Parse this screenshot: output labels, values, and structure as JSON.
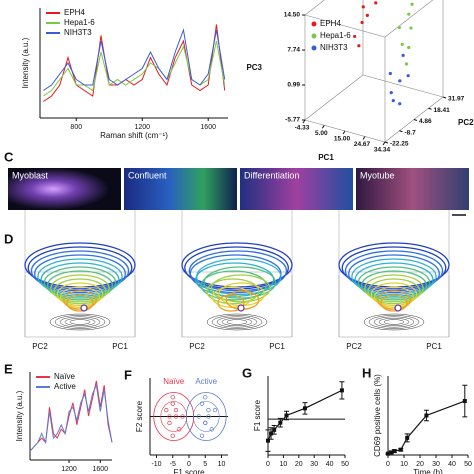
{
  "chart_data": [
    {
      "type": "line",
      "ylabel": "Intensity (a.u.)",
      "xlabel": "Raman shift (cm⁻¹)",
      "legend": "upper left",
      "x": [
        600,
        650,
        700,
        750,
        800,
        850,
        900,
        950,
        1000,
        1050,
        1100,
        1150,
        1200,
        1250,
        1300,
        1350,
        1400,
        1450,
        1500,
        1550,
        1600,
        1650,
        1700
      ],
      "series": [
        {
          "name": "EPH4",
          "color": "#e41a1c",
          "values": [
            0.15,
            0.2,
            0.3,
            0.55,
            0.3,
            0.25,
            0.2,
            0.75,
            0.3,
            0.3,
            0.35,
            0.3,
            0.35,
            0.55,
            0.4,
            0.3,
            0.55,
            0.7,
            0.3,
            0.25,
            0.3,
            0.85,
            0.25
          ]
        },
        {
          "name": "Hepa1-6",
          "color": "#7ac943",
          "values": [
            0.2,
            0.25,
            0.35,
            0.45,
            0.3,
            0.3,
            0.25,
            0.6,
            0.3,
            0.35,
            0.3,
            0.35,
            0.4,
            0.5,
            0.45,
            0.35,
            0.5,
            0.65,
            0.35,
            0.3,
            0.35,
            0.7,
            0.3
          ]
        },
        {
          "name": "NIH3T3",
          "color": "#3b5bdb",
          "values": [
            0.25,
            0.3,
            0.4,
            0.5,
            0.35,
            0.3,
            0.3,
            0.7,
            0.35,
            0.3,
            0.35,
            0.4,
            0.45,
            0.6,
            0.45,
            0.35,
            0.6,
            0.8,
            0.35,
            0.3,
            0.4,
            0.8,
            0.35
          ]
        }
      ],
      "xlim": [
        580,
        1720
      ],
      "xticks": [
        800,
        1200,
        1600
      ],
      "ylim": [
        0,
        1
      ]
    },
    {
      "type": "scatter3d",
      "xlabel": "PC1",
      "ylabel": "PC2",
      "zlabel": "PC3",
      "legend": "upper left",
      "xlim": [
        -4.33,
        34.34
      ],
      "ylim": [
        -22.25,
        31.97
      ],
      "zlim": [
        -5.77,
        14.5
      ],
      "xticks": [
        -4.33,
        {
          "value": 5,
          "label": "5.00"
        },
        {
          "value": 15,
          "label": "15.00"
        },
        24.67,
        34.34
      ],
      "yticks": [
        -22.25,
        -8.7,
        4.86,
        18.41,
        31.97
      ],
      "zticks": [
        -5.77,
        0.99,
        7.74,
        {
          "value": 14.5,
          "label": "14.50"
        }
      ],
      "series": [
        {
          "name": "EPH4",
          "color": "#e41a1c",
          "x": [
            2,
            4,
            6,
            3,
            5,
            7,
            4
          ],
          "y": [
            20,
            15,
            25,
            10,
            18,
            22,
            12
          ],
          "z": [
            10,
            8,
            12,
            6,
            9,
            11,
            4
          ]
        },
        {
          "name": "Hepa1-6",
          "color": "#7ac943",
          "x": [
            22,
            24,
            26,
            23,
            25,
            27,
            24
          ],
          "y": [
            15,
            20,
            10,
            25,
            18,
            12,
            22
          ],
          "z": [
            9,
            11,
            7,
            12,
            5,
            3,
            8
          ]
        },
        {
          "name": "NIH3T3",
          "color": "#3b5bdb",
          "x": [
            28,
            30,
            32,
            29,
            31,
            30,
            33
          ],
          "y": [
            -5,
            0,
            -10,
            5,
            -2,
            -8,
            2
          ],
          "z": [
            4,
            2,
            0,
            6,
            -2,
            1,
            3
          ]
        }
      ]
    },
    {
      "type": "line",
      "panel": "E",
      "ylabel": "Intensity (a.u.)",
      "legend": "upper left",
      "x": [
        700,
        750,
        800,
        850,
        900,
        950,
        1000,
        1050,
        1100,
        1150,
        1200,
        1250,
        1300,
        1350,
        1400,
        1450,
        1500,
        1550,
        1600,
        1650,
        1700,
        1750
      ],
      "series": [
        {
          "name": "Naïve",
          "color": "#e8334a",
          "values": [
            0.1,
            0.15,
            0.2,
            0.25,
            0.2,
            0.6,
            0.3,
            0.25,
            0.35,
            0.3,
            0.5,
            0.65,
            0.4,
            0.6,
            0.8,
            0.5,
            0.7,
            0.9,
            0.6,
            0.85,
            0.4,
            0.2
          ]
        },
        {
          "name": "Active",
          "color": "#5b7bd5",
          "values": [
            0.1,
            0.15,
            0.2,
            0.3,
            0.2,
            0.55,
            0.25,
            0.3,
            0.4,
            0.3,
            0.55,
            0.6,
            0.45,
            0.65,
            0.75,
            0.55,
            0.75,
            0.85,
            0.55,
            0.8,
            0.45,
            0.2
          ]
        }
      ],
      "xlim": [
        700,
        1750
      ],
      "xticks": [
        1200,
        1600
      ],
      "ylim": [
        0,
        1
      ]
    },
    {
      "type": "scatter",
      "panel": "F",
      "xlabel": "F1 score",
      "ylabel": "F2 score",
      "xlim": [
        -12,
        12
      ],
      "xticks": [
        -10,
        -5,
        0,
        5,
        10
      ],
      "ylim": [
        -6,
        6
      ],
      "series": [
        {
          "name": "Naïve",
          "color": "#e8334a",
          "x": [
            -7,
            -6,
            -5,
            -4,
            -3,
            -6,
            -5,
            -4,
            -2,
            -5
          ],
          "y": [
            1,
            -1,
            2,
            0,
            -2,
            0,
            -3,
            1,
            0,
            3
          ]
        },
        {
          "name": "Active",
          "color": "#5b7bd5",
          "x": [
            3,
            4,
            5,
            6,
            7,
            4,
            5,
            6,
            8,
            5
          ],
          "y": [
            0,
            2,
            -1,
            1,
            -2,
            -3,
            3,
            0,
            1,
            -1
          ]
        }
      ]
    },
    {
      "type": "line",
      "panel": "G",
      "ylabel": "F1 score",
      "x": [
        0,
        2,
        4,
        8,
        12,
        24,
        48
      ],
      "series": [
        {
          "color": "#111111",
          "values": [
            -3,
            -2,
            -1.5,
            -0.5,
            0.5,
            1.5,
            4
          ],
          "errors": [
            1.5,
            0.8,
            0.6,
            0.6,
            0.6,
            0.8,
            1.2
          ]
        }
      ],
      "xlim": [
        0,
        50
      ],
      "xticks": [
        0,
        10,
        20,
        30,
        40,
        50
      ],
      "ylim": [
        -5,
        6
      ]
    },
    {
      "type": "line",
      "panel": "H",
      "ylabel": "CD69 positive cells (%)",
      "xlabel": "Time (h)",
      "x": [
        0,
        2,
        4,
        8,
        12,
        24,
        48
      ],
      "series": [
        {
          "color": "#111111",
          "values": [
            1,
            2,
            3,
            4,
            13,
            30,
            41
          ],
          "errors": [
            0.5,
            1,
            1,
            1,
            3,
            4,
            12
          ]
        }
      ],
      "xlim": [
        0,
        50
      ],
      "xticks": [
        0,
        10,
        20,
        30,
        40,
        50
      ],
      "ylim": [
        0,
        60
      ]
    }
  ],
  "panel_c": {
    "panel": "C",
    "images": [
      {
        "label": "Myoblast"
      },
      {
        "label": "Confluent"
      },
      {
        "label": "Differentiation"
      },
      {
        "label": "Myotube"
      }
    ]
  },
  "panel_d": {
    "panel": "D",
    "plots": [
      {
        "xlabel": "PC1",
        "ylabel": "PC2"
      },
      {
        "xlabel": "PC1",
        "ylabel": "PC2"
      },
      {
        "xlabel": "PC1",
        "ylabel": "PC2"
      }
    ]
  }
}
